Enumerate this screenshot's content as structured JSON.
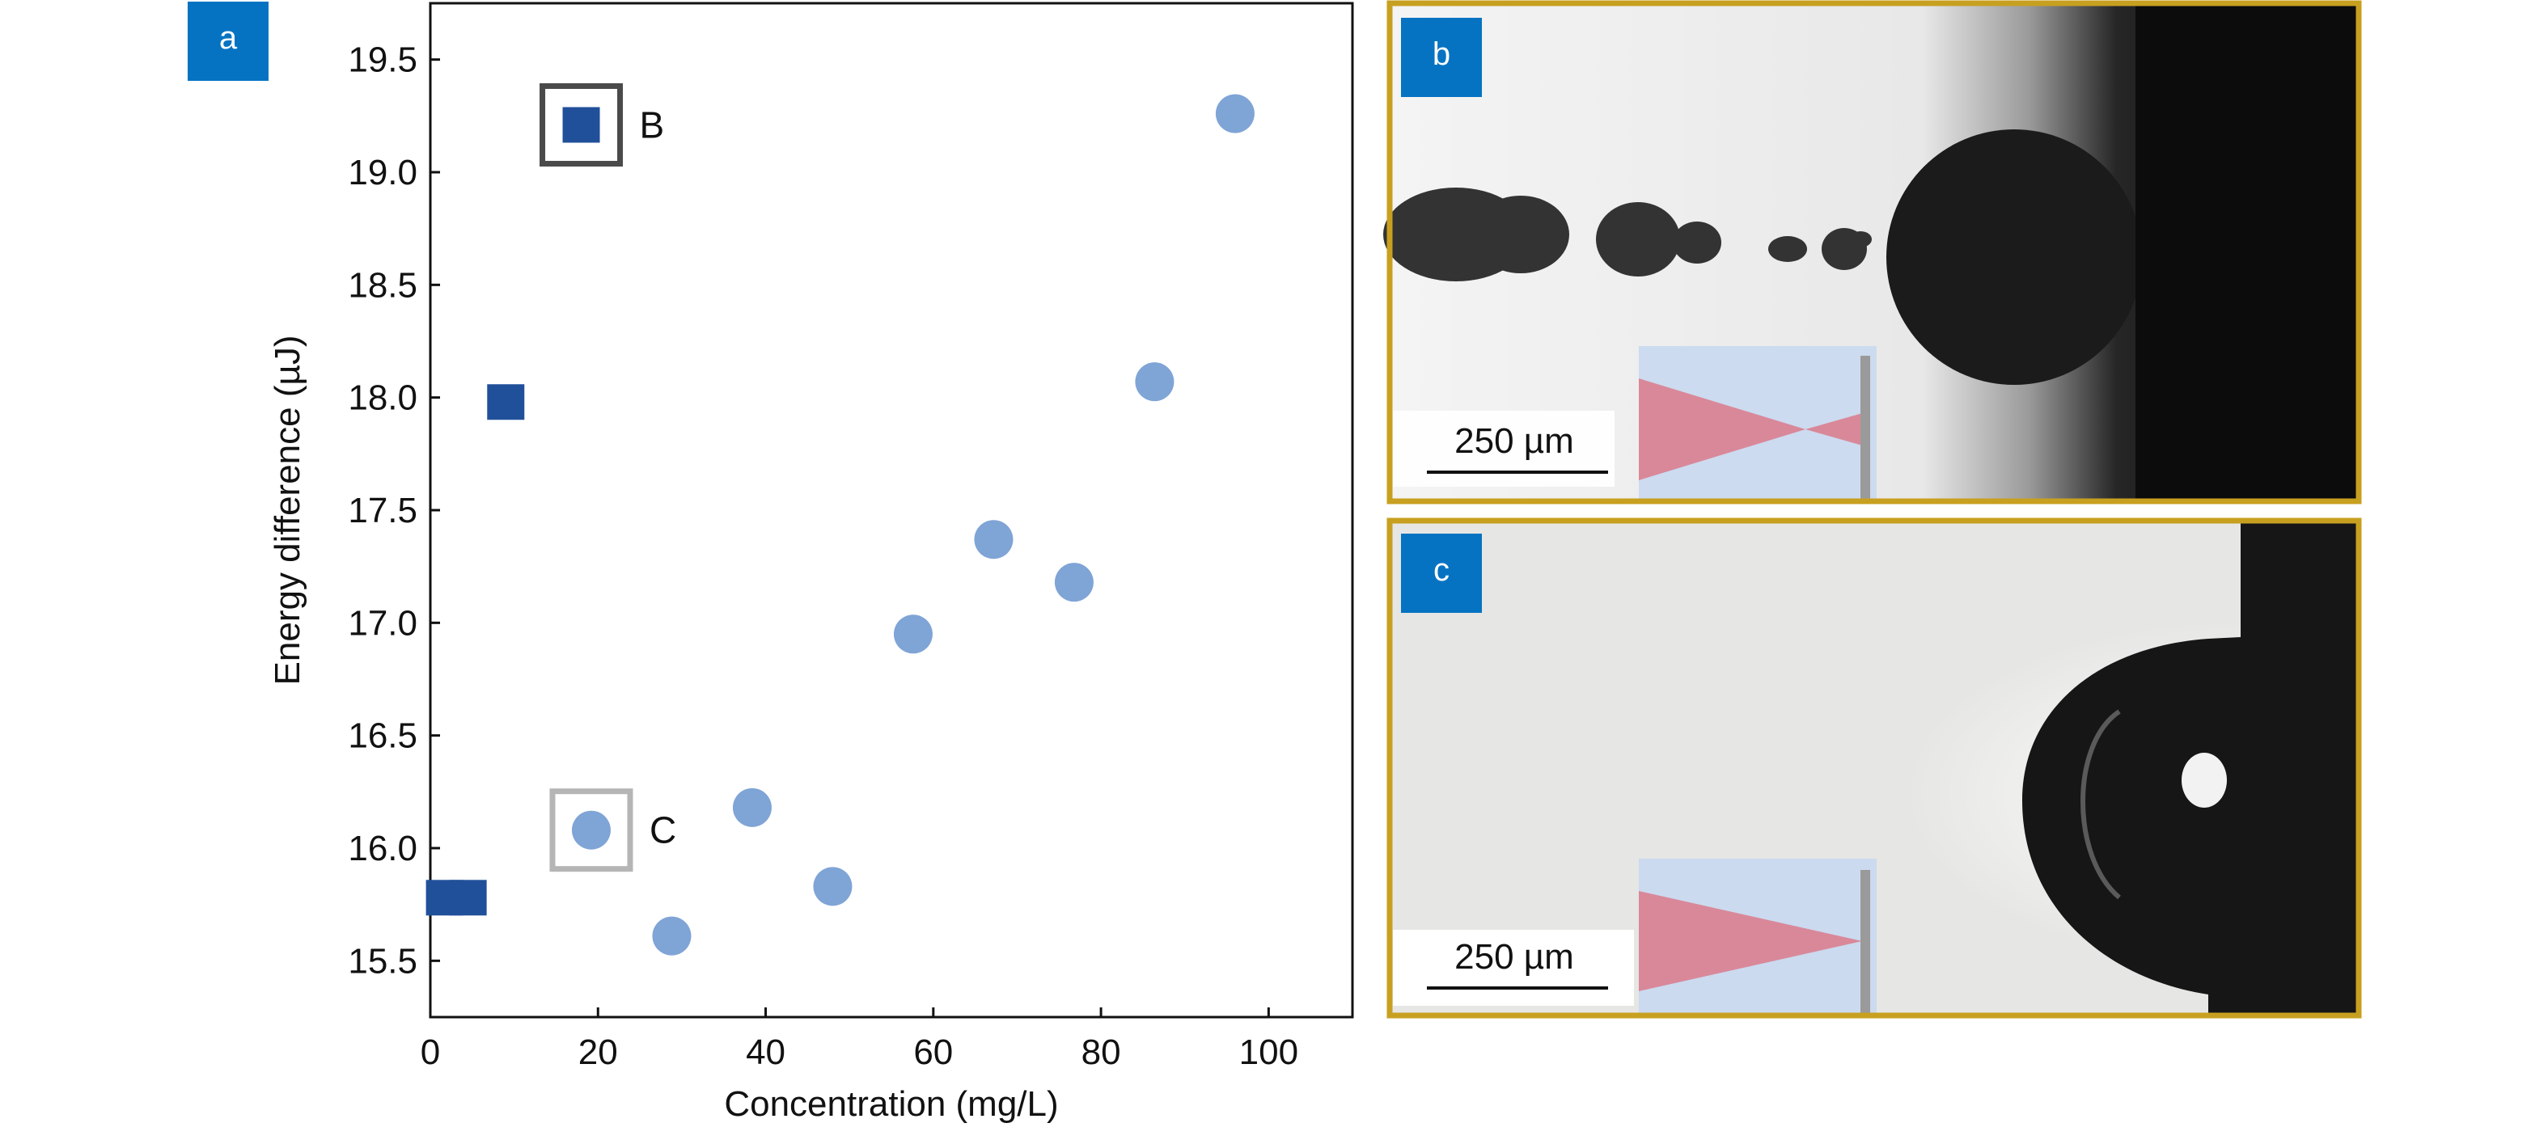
{
  "panel_labels": {
    "a": "a",
    "b": "b",
    "c": "c"
  },
  "colors": {
    "panel_label_bg": "#0673c2",
    "panel_label_text": "#ffffff",
    "dark_marker": "#21509a",
    "light_marker": "#7fa4d6",
    "box_b": "#4a4a4a",
    "box_c": "#b5b5b5",
    "image_border": "#c8a020",
    "inset_bg": "#c9d9ef",
    "inset_beam": "#d9889a",
    "inset_wall": "#9a9a9a"
  },
  "scale_bar": {
    "b": "250 µm",
    "c": "250 µm"
  },
  "chart_data": {
    "type": "scatter",
    "title": "",
    "xlabel": "Concentration (mg/L)",
    "ylabel": "Energy difference (µJ)",
    "xlim": [
      0,
      110
    ],
    "ylim": [
      15.25,
      19.75
    ],
    "xticks": [
      0,
      20,
      40,
      60,
      80,
      100
    ],
    "xtick_labels": [
      "0",
      "20",
      "40",
      "60",
      "80",
      "100"
    ],
    "yticks": [
      15.5,
      16.0,
      16.5,
      17.0,
      17.5,
      18.0,
      18.5,
      19.0,
      19.5
    ],
    "ytick_labels": [
      "15.5",
      "16.0",
      "16.5",
      "17.0",
      "17.5",
      "18.0",
      "18.5",
      "19.0",
      "19.5"
    ],
    "grid": false,
    "series": [
      {
        "marker": "square",
        "color": "#21509a",
        "points": [
          {
            "x": 1.7,
            "y": 15.78
          },
          {
            "x": 4.5,
            "y": 15.78
          },
          {
            "x": 9.0,
            "y": 17.98
          },
          {
            "x": 18.0,
            "y": 19.21
          }
        ]
      },
      {
        "marker": "circle",
        "color": "#7fa4d6",
        "points": [
          {
            "x": 19.2,
            "y": 16.08
          },
          {
            "x": 28.8,
            "y": 15.61
          },
          {
            "x": 38.4,
            "y": 16.18
          },
          {
            "x": 48.0,
            "y": 15.83
          },
          {
            "x": 57.6,
            "y": 16.95
          },
          {
            "x": 67.2,
            "y": 17.37
          },
          {
            "x": 76.8,
            "y": 17.18
          },
          {
            "x": 86.4,
            "y": 18.07
          },
          {
            "x": 96.0,
            "y": 19.26
          }
        ]
      }
    ],
    "annotations": [
      {
        "label": "B",
        "x": 18.0,
        "y": 19.21
      },
      {
        "label": "C",
        "x": 19.2,
        "y": 16.08
      }
    ]
  }
}
